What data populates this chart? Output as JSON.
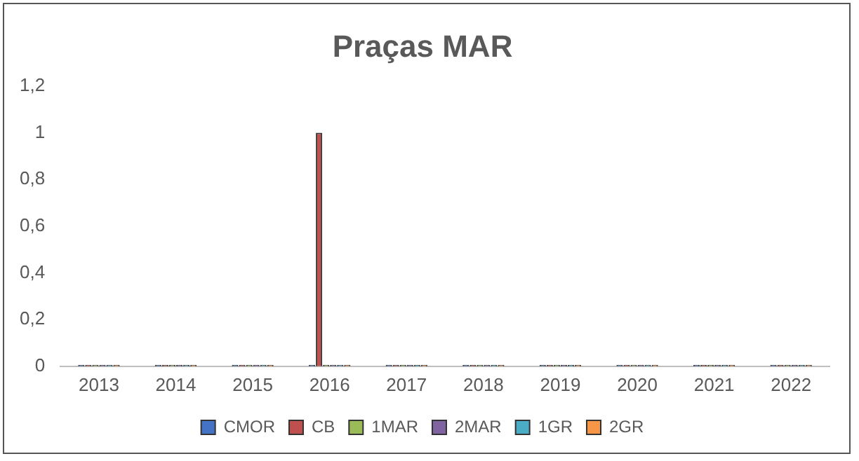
{
  "chart_data": {
    "type": "bar",
    "title": "Praças MAR",
    "categories": [
      "2013",
      "2014",
      "2015",
      "2016",
      "2017",
      "2018",
      "2019",
      "2020",
      "2021",
      "2022"
    ],
    "series": [
      {
        "name": "CMOR",
        "color": "#4472c4",
        "values": [
          0,
          0,
          0,
          0,
          0,
          0,
          0,
          0,
          0,
          0
        ]
      },
      {
        "name": "CB",
        "color": "#c0504d",
        "values": [
          0,
          0,
          0,
          1,
          0,
          0,
          0,
          0,
          0,
          0
        ]
      },
      {
        "name": "1MAR",
        "color": "#9bbb59",
        "values": [
          0,
          0,
          0,
          0,
          0,
          0,
          0,
          0,
          0,
          0
        ]
      },
      {
        "name": "2MAR",
        "color": "#8064a2",
        "values": [
          0,
          0,
          0,
          0,
          0,
          0,
          0,
          0,
          0,
          0
        ]
      },
      {
        "name": "1GR",
        "color": "#4bacc6",
        "values": [
          0,
          0,
          0,
          0,
          0,
          0,
          0,
          0,
          0,
          0
        ]
      },
      {
        "name": "2GR",
        "color": "#f79646",
        "values": [
          0,
          0,
          0,
          0,
          0,
          0,
          0,
          0,
          0,
          0
        ]
      }
    ],
    "ylim": [
      0,
      1.2
    ],
    "yticks": [
      0,
      {
        "value": 0.2,
        "label": "0,2"
      },
      {
        "value": 0.4,
        "label": "0,4"
      },
      {
        "value": 0.6,
        "label": "0,6"
      },
      {
        "value": 0.8,
        "label": "0,8"
      },
      1,
      {
        "value": 1.2,
        "label": "1,2"
      }
    ],
    "grid": false,
    "legend": "bottom"
  }
}
